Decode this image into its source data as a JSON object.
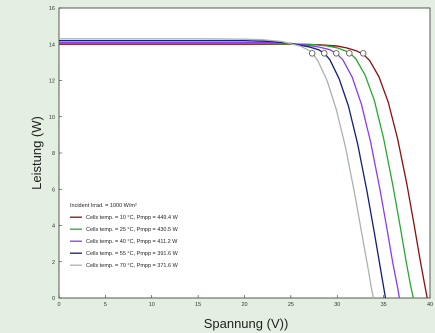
{
  "chart_data": {
    "type": "line",
    "xlabel": "Spannung (V))",
    "ylabel": "Leistung (W)",
    "xlim": [
      0,
      40
    ],
    "ylim": [
      0,
      16
    ],
    "x_ticks": [
      "0",
      "5",
      "10",
      "15",
      "20",
      "25",
      "30",
      "35",
      "40"
    ],
    "y_ticks": [
      "0",
      "2",
      "4",
      "6",
      "8",
      "10",
      "12",
      "14",
      "16"
    ],
    "grid": false,
    "legend_position": "bottom-left",
    "legend_header": "Incident Irrad. = 1000 W/m²",
    "series": [
      {
        "name": "Cells temp. = 10 °C,  Pmpp = 449.4 W",
        "color": "#8b0f0f",
        "mpp": [
          32.8,
          13.5
        ],
        "x": [
          0,
          5,
          10,
          15,
          20,
          25,
          28,
          30,
          31,
          32,
          32.8,
          33.5,
          34.5,
          35.5,
          36.5,
          37.5,
          38.3,
          38.9,
          39.4,
          39.7
        ],
        "y": [
          14.0,
          14.0,
          14.0,
          14.0,
          14.0,
          14.0,
          13.98,
          13.9,
          13.8,
          13.65,
          13.45,
          13.1,
          12.2,
          10.8,
          8.8,
          6.3,
          4.0,
          2.2,
          0.8,
          0.0
        ]
      },
      {
        "name": "Cells temp. = 25 °C,  Pmpp = 430.5 W",
        "color": "#27a82e",
        "mpp": [
          31.3,
          13.5
        ],
        "x": [
          0,
          5,
          10,
          15,
          20,
          25,
          27,
          29,
          30,
          31.3,
          32,
          33,
          34,
          35,
          36,
          36.8,
          37.4,
          37.9,
          38.2
        ],
        "y": [
          14.05,
          14.05,
          14.05,
          14.05,
          14.05,
          14.02,
          14.0,
          13.9,
          13.8,
          13.55,
          13.2,
          12.3,
          10.9,
          8.8,
          6.2,
          3.9,
          2.1,
          0.7,
          0.0
        ]
      },
      {
        "name": "Cells temp. = 40 °C,  Pmpp = 411.2 W",
        "color": "#8a3cf0",
        "mpp": [
          29.9,
          13.5
        ],
        "x": [
          0,
          5,
          10,
          15,
          20,
          24,
          26,
          28,
          29.2,
          29.9,
          30.6,
          31.6,
          32.6,
          33.6,
          34.6,
          35.4,
          36,
          36.5,
          36.7
        ],
        "y": [
          14.1,
          14.1,
          14.1,
          14.1,
          14.1,
          14.08,
          14.0,
          13.85,
          13.7,
          13.5,
          13.15,
          12.2,
          10.7,
          8.6,
          6.0,
          3.7,
          1.9,
          0.6,
          0.0
        ]
      },
      {
        "name": "Cells temp. = 55 °C,  Pmpp = 391.6 W",
        "color": "#101f7a",
        "mpp": [
          28.6,
          13.5
        ],
        "x": [
          0,
          5,
          10,
          15,
          20,
          23,
          25,
          27,
          28,
          28.6,
          29.2,
          30.2,
          31.2,
          32.2,
          33.2,
          34,
          34.6,
          35,
          35.2
        ],
        "y": [
          14.2,
          14.2,
          14.2,
          14.2,
          14.2,
          14.15,
          14.05,
          13.85,
          13.7,
          13.5,
          13.15,
          12.1,
          10.6,
          8.5,
          5.9,
          3.6,
          1.8,
          0.6,
          0.0
        ]
      },
      {
        "name": "Cells temp. = 70 °C,  Pmpp = 371.6 W",
        "color": "#a9b4ac",
        "mpp": [
          27.3,
          13.5
        ],
        "x": [
          0,
          5,
          10,
          15,
          20,
          22,
          24,
          26,
          27,
          27.3,
          27.9,
          28.9,
          29.9,
          30.9,
          31.9,
          32.7,
          33.3,
          33.7,
          33.9
        ],
        "y": [
          14.3,
          14.3,
          14.3,
          14.3,
          14.28,
          14.25,
          14.15,
          13.9,
          13.65,
          13.5,
          13.1,
          12.0,
          10.4,
          8.3,
          5.7,
          3.4,
          1.7,
          0.5,
          0.0
        ]
      }
    ]
  }
}
